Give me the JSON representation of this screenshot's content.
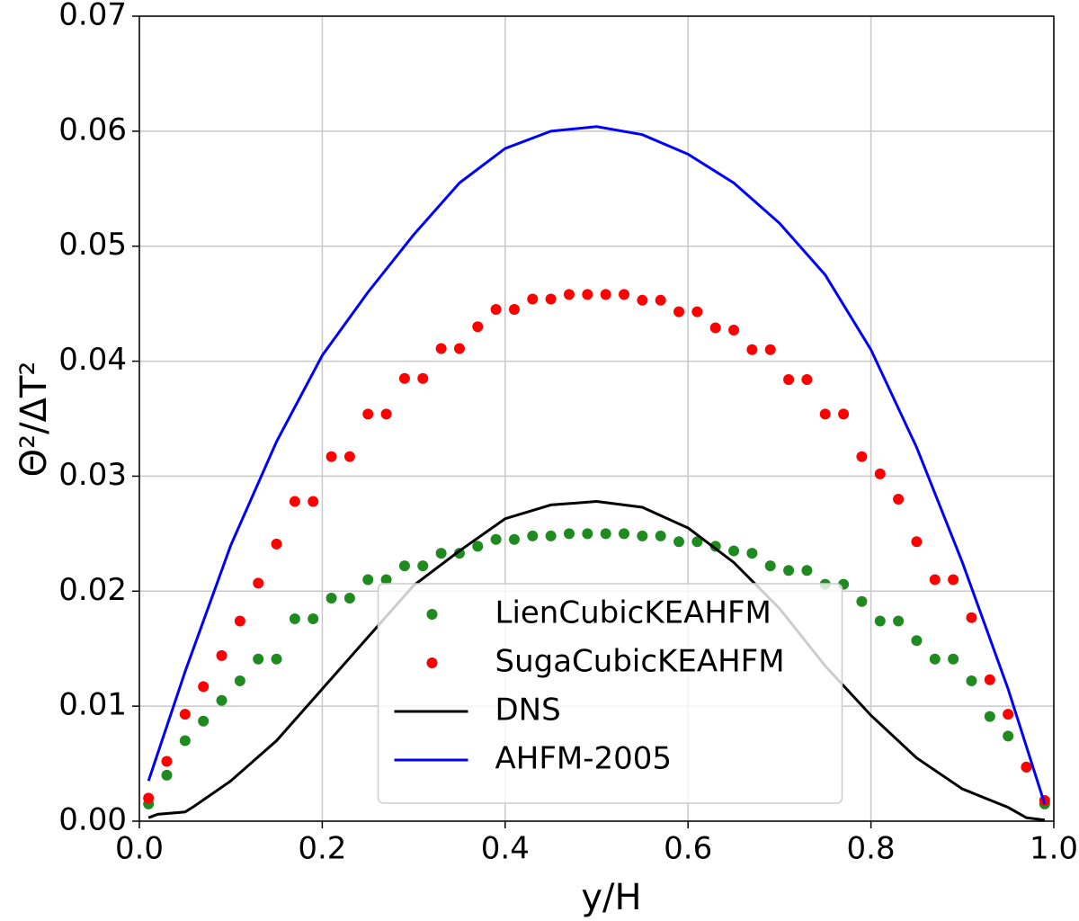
{
  "chart_data": {
    "type": "scatter",
    "xlabel": "y/H",
    "ylabel": "Θ²/ΔT²",
    "xlim": [
      0,
      1
    ],
    "ylim": [
      0,
      0.07
    ],
    "xticks": [
      {
        "value": 0,
        "label": "0.0"
      },
      0.2,
      0.4,
      0.6,
      0.8,
      {
        "value": 1,
        "label": "1.0"
      }
    ],
    "yticks": [
      {
        "value": 0,
        "label": "0.00"
      },
      0.01,
      0.02,
      0.03,
      0.04,
      0.05,
      0.06,
      0.07
    ],
    "grid": true,
    "legend": "lower center",
    "series": [
      {
        "name": "LienCubicKEAHFM",
        "color": "#1f8a1f",
        "mode": "markers",
        "x": [
          0.01,
          0.03,
          0.05,
          0.07,
          0.09,
          0.11,
          0.13,
          0.15,
          0.17,
          0.19,
          0.21,
          0.23,
          0.25,
          0.27,
          0.29,
          0.31,
          0.33,
          0.35,
          0.37,
          0.39,
          0.41,
          0.43,
          0.45,
          0.47,
          0.49,
          0.51,
          0.53,
          0.55,
          0.57,
          0.59,
          0.61,
          0.63,
          0.65,
          0.67,
          0.69,
          0.71,
          0.73,
          0.75,
          0.77,
          0.79,
          0.81,
          0.83,
          0.85,
          0.87,
          0.89,
          0.91,
          0.93,
          0.95,
          0.97,
          0.99
        ],
        "values": [
          0.0015,
          0.004,
          0.007,
          0.0087,
          0.0105,
          0.0122,
          0.0141,
          0.0141,
          0.0176,
          0.0176,
          0.0194,
          0.0194,
          0.021,
          0.021,
          0.0222,
          0.0222,
          0.0233,
          0.0233,
          0.0239,
          0.0245,
          0.0245,
          0.0248,
          0.0248,
          0.025,
          0.025,
          0.025,
          0.025,
          0.0248,
          0.0248,
          0.0243,
          0.0243,
          0.0239,
          0.0235,
          0.0233,
          0.0222,
          0.0218,
          0.0218,
          0.0206,
          0.0206,
          0.0191,
          0.0174,
          0.0174,
          0.0157,
          0.0141,
          0.0141,
          0.0122,
          0.0091,
          0.0074,
          0.0047,
          0.0015
        ]
      },
      {
        "name": "SugaCubicKEAHFM",
        "color": "#ff0000",
        "mode": "markers",
        "x": [
          0.01,
          0.03,
          0.05,
          0.07,
          0.09,
          0.11,
          0.13,
          0.15,
          0.17,
          0.19,
          0.21,
          0.23,
          0.25,
          0.27,
          0.29,
          0.31,
          0.33,
          0.35,
          0.37,
          0.39,
          0.41,
          0.43,
          0.45,
          0.47,
          0.49,
          0.51,
          0.53,
          0.55,
          0.57,
          0.59,
          0.61,
          0.63,
          0.65,
          0.67,
          0.69,
          0.71,
          0.73,
          0.75,
          0.77,
          0.79,
          0.81,
          0.83,
          0.85,
          0.87,
          0.89,
          0.91,
          0.93,
          0.95,
          0.97,
          0.99
        ],
        "values": [
          0.002,
          0.0052,
          0.0093,
          0.0117,
          0.0144,
          0.0174,
          0.0207,
          0.0241,
          0.0278,
          0.0278,
          0.0317,
          0.0317,
          0.0354,
          0.0354,
          0.0385,
          0.0385,
          0.0411,
          0.0411,
          0.043,
          0.0445,
          0.0445,
          0.0454,
          0.0454,
          0.0458,
          0.0458,
          0.0458,
          0.0458,
          0.0453,
          0.0453,
          0.0443,
          0.0443,
          0.0429,
          0.0427,
          0.041,
          0.041,
          0.0384,
          0.0384,
          0.0354,
          0.0354,
          0.0317,
          0.0302,
          0.028,
          0.0243,
          0.021,
          0.021,
          0.0177,
          0.0123,
          0.0093,
          0.0047,
          0.0018
        ]
      },
      {
        "name": "DNS",
        "color": "#000000",
        "mode": "line",
        "x": [
          0.01,
          0.02,
          0.05,
          0.06,
          0.1,
          0.15,
          0.2,
          0.25,
          0.3,
          0.35,
          0.4,
          0.45,
          0.5,
          0.55,
          0.6,
          0.65,
          0.7,
          0.75,
          0.8,
          0.85,
          0.9,
          0.95,
          0.97,
          0.99
        ],
        "values": [
          0.0003,
          0.0006,
          0.0008,
          0.0013,
          0.0035,
          0.007,
          0.0115,
          0.016,
          0.0205,
          0.0235,
          0.0263,
          0.0275,
          0.0278,
          0.0273,
          0.0255,
          0.0225,
          0.0185,
          0.0135,
          0.0092,
          0.0055,
          0.0028,
          0.0012,
          0.0003,
          0.0001
        ]
      },
      {
        "name": "AHFM-2005",
        "color": "#0000ff",
        "mode": "line",
        "x": [
          0.01,
          0.05,
          0.1,
          0.15,
          0.2,
          0.25,
          0.3,
          0.35,
          0.4,
          0.45,
          0.5,
          0.55,
          0.6,
          0.65,
          0.7,
          0.75,
          0.8,
          0.85,
          0.9,
          0.95,
          0.99
        ],
        "values": [
          0.0035,
          0.013,
          0.024,
          0.033,
          0.0405,
          0.046,
          0.051,
          0.0555,
          0.0585,
          0.06,
          0.0604,
          0.0597,
          0.058,
          0.0555,
          0.052,
          0.0475,
          0.041,
          0.0325,
          0.0225,
          0.0115,
          0.0015
        ]
      }
    ]
  }
}
